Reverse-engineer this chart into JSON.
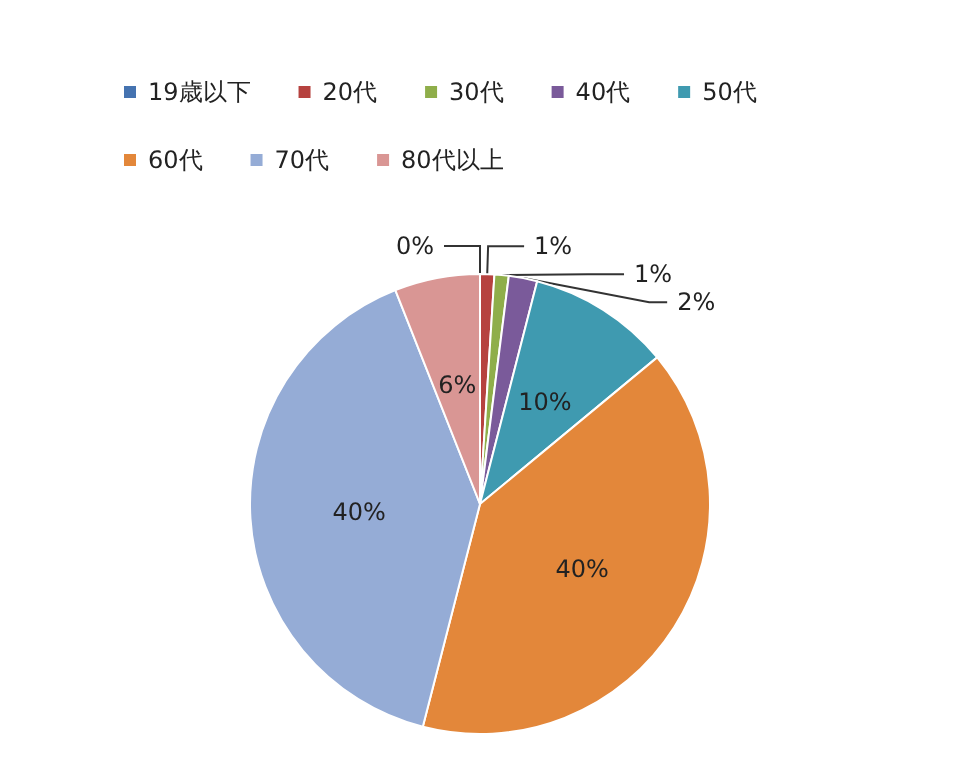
{
  "chart_data": {
    "type": "pie",
    "categories": [
      "19歳以下",
      "20代",
      "30代",
      "40代",
      "50代",
      "60代",
      "70代",
      "80代以上"
    ],
    "values": [
      0,
      1,
      1,
      2,
      10,
      40,
      40,
      6
    ],
    "value_labels": [
      "0%",
      "1%",
      "1%",
      "2%",
      "10%",
      "40%",
      "40%",
      "6%"
    ],
    "colors": [
      "#4573b0",
      "#b6423f",
      "#8fae4a",
      "#7a5a9a",
      "#3f9ab0",
      "#e3873a",
      "#95acd6",
      "#d99694"
    ],
    "legend": "top"
  }
}
